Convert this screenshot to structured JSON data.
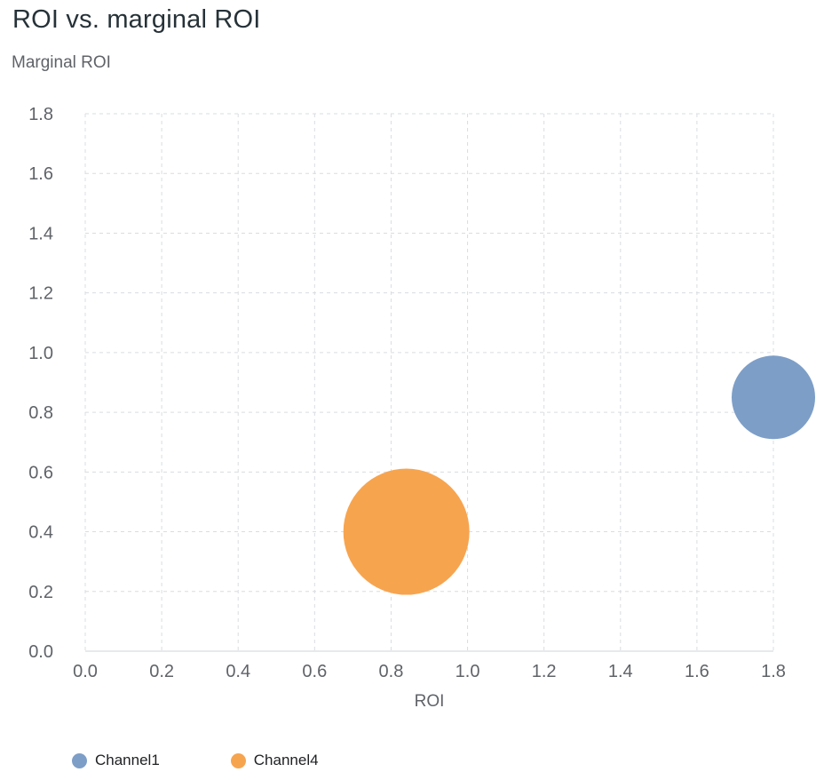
{
  "chart_data": {
    "type": "scatter",
    "title": "ROI vs. marginal ROI",
    "xlabel": "ROI",
    "ylabel": "Marginal ROI",
    "xlim": [
      0,
      1.8
    ],
    "ylim": [
      0,
      1.8
    ],
    "x_ticks": [
      0,
      0.2,
      0.4,
      0.6,
      0.8,
      1.0,
      1.2,
      1.4,
      1.6,
      1.8
    ],
    "y_ticks": [
      0,
      0.2,
      0.4,
      0.6,
      0.8,
      1.0,
      1.2,
      1.4,
      1.6,
      1.8
    ],
    "grid": "dashed",
    "legend_position": "bottom",
    "series": [
      {
        "name": "Channel1",
        "color": "#7d9ec7",
        "points": [
          {
            "x": 1.8,
            "y": 0.85,
            "radius_px": 47
          }
        ]
      },
      {
        "name": "Channel4",
        "color": "#f7a44f",
        "points": [
          {
            "x": 0.84,
            "y": 0.4,
            "radius_px": 71
          }
        ]
      }
    ]
  },
  "styles": {
    "grid_color": "#dadce0",
    "axis_line_color": "#cfd3d7",
    "tick_label_color": "#5f6368",
    "title_color": "#263238",
    "axis_title_color": "#5f6368",
    "legend_label_color": "#202124"
  }
}
